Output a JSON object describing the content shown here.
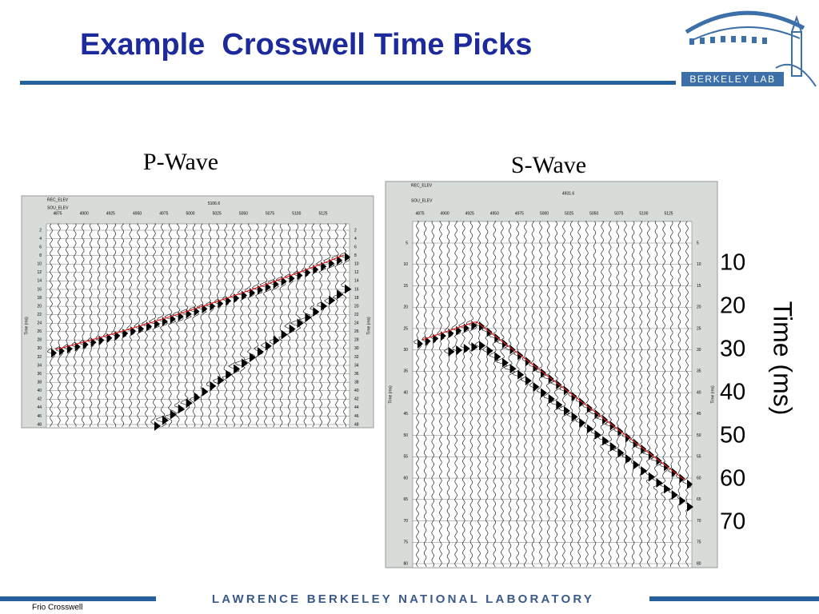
{
  "header": {
    "title": "Example  Crosswell Time Picks",
    "logo": "BERKELEY LAB"
  },
  "panels": [
    {
      "label": "P-Wave",
      "rec_elev": "REC_ELEV",
      "sou_elev": "SOU_ELEV",
      "header_value": "5106.6",
      "stations": [
        "4875",
        "4900",
        "4925",
        "4950",
        "4975",
        "5000",
        "5025",
        "5050",
        "5075",
        "5100",
        "5125"
      ],
      "time_ticks": [
        2,
        4,
        6,
        8,
        10,
        12,
        14,
        16,
        18,
        20,
        22,
        24,
        26,
        28,
        30,
        32,
        34,
        36,
        38,
        40,
        42,
        44,
        46,
        48
      ],
      "axis_label": "Time (ms)"
    },
    {
      "label": "S-Wave",
      "rec_elev": "REC_ELEV",
      "sou_elev": "SOU_ELEV",
      "header_value": "4931.6",
      "stations": [
        "4875",
        "4900",
        "4925",
        "4950",
        "4975",
        "5000",
        "5025",
        "5050",
        "5075",
        "5100",
        "5125"
      ],
      "time_ticks": [
        5,
        10,
        15,
        20,
        25,
        30,
        35,
        40,
        45,
        50,
        55,
        60,
        65,
        70,
        75,
        80
      ],
      "axis_label": "Time (ms)"
    }
  ],
  "time_scale": {
    "ticks": [
      10,
      20,
      30,
      40,
      50,
      60,
      70
    ],
    "label": "Time (ms)"
  },
  "footer": {
    "lab": "LAWRENCE BERKELEY NATIONAL LABORATORY",
    "note": "Frio Crosswell"
  }
}
